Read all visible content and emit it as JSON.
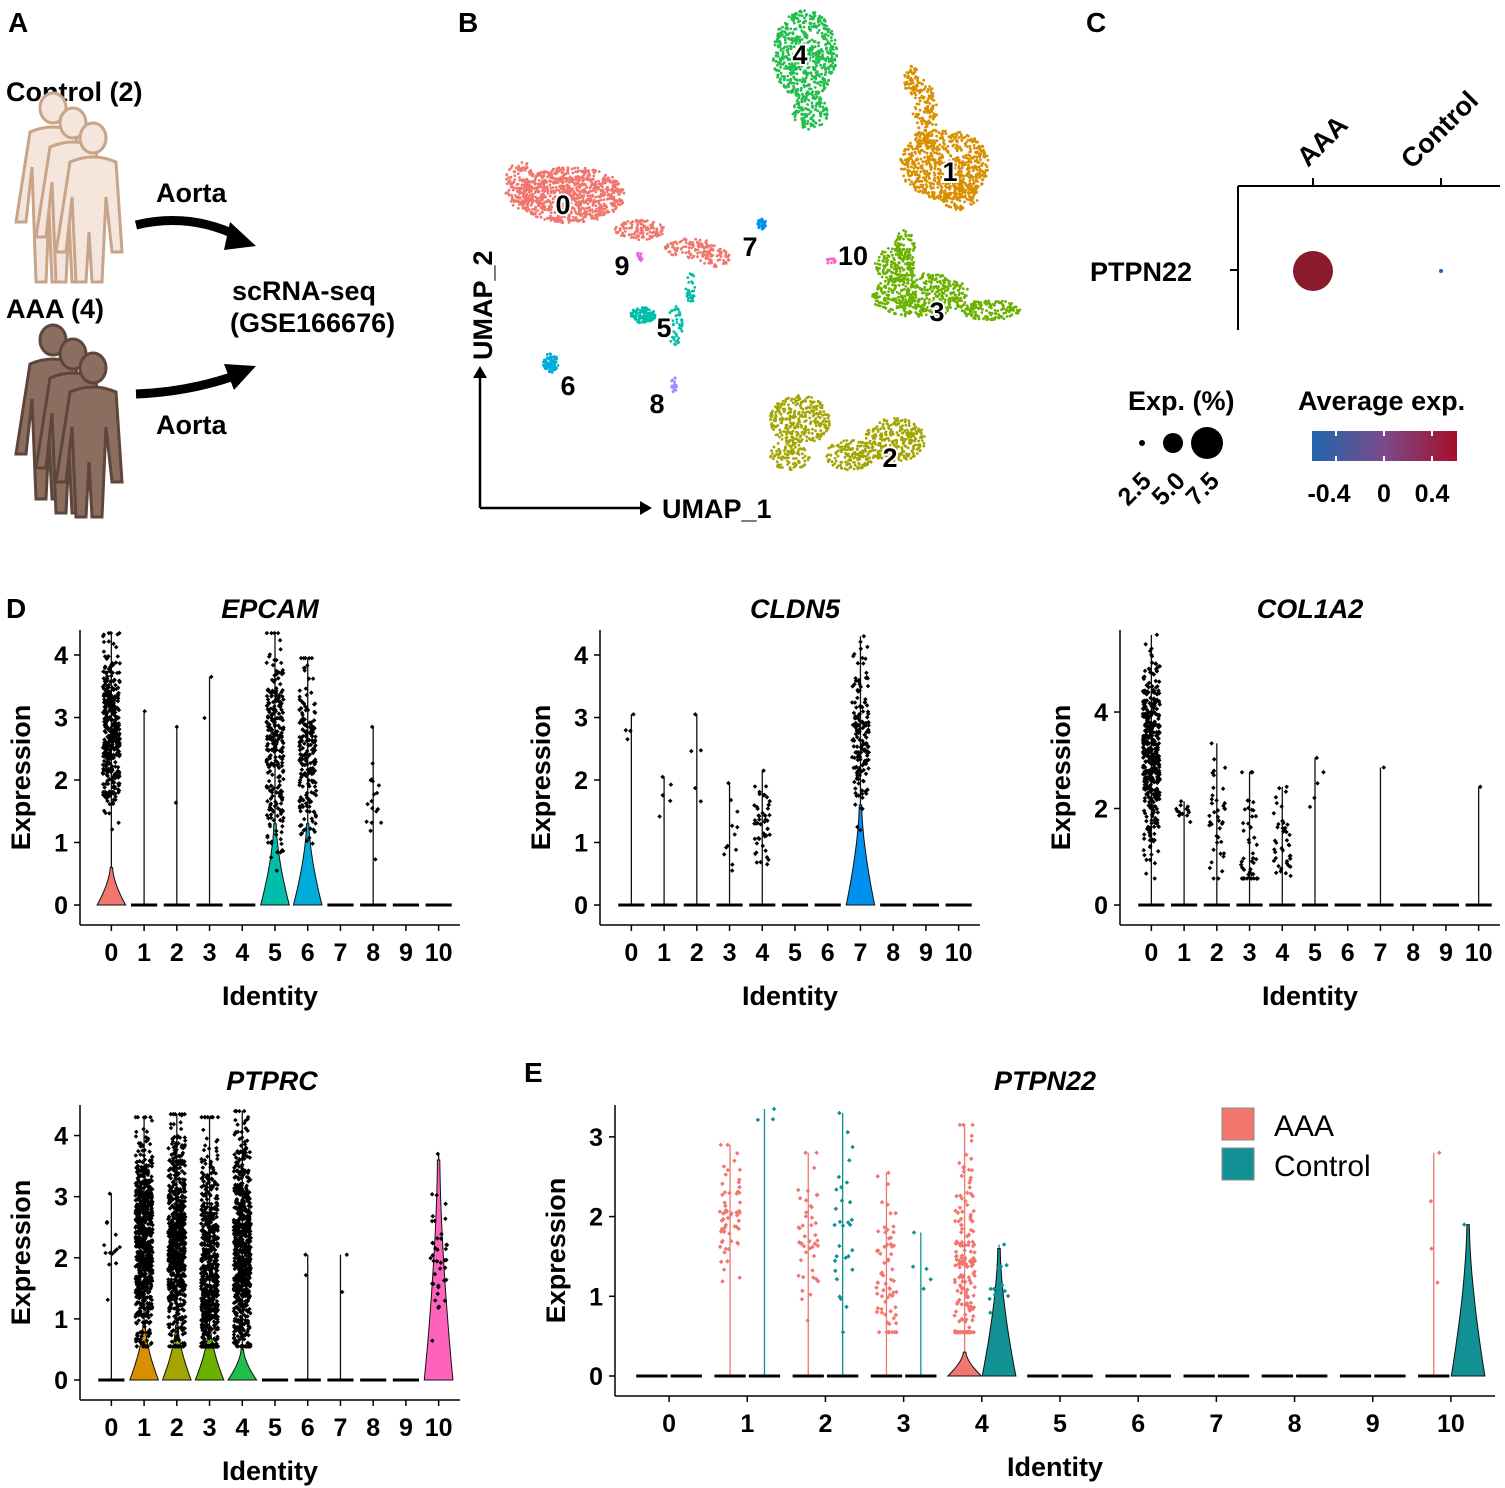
{
  "panels": {
    "a": "A",
    "b": "B",
    "c": "C",
    "d": "D",
    "e": "E"
  },
  "panel_a": {
    "control_label": "Control (2)",
    "aaa_label": "AAA (4)",
    "arrow_label_top": "Aorta",
    "arrow_label_bottom": "Aorta",
    "assay_line1": "scRNA-seq",
    "assay_line2": "(GSE166676)"
  },
  "panel_b": {
    "xlabel": "UMAP_1",
    "ylabel": "UMAP_2",
    "clusters": [
      {
        "id": "0",
        "color": "#F0766E"
      },
      {
        "id": "1",
        "color": "#D89000"
      },
      {
        "id": "2",
        "color": "#A3A500"
      },
      {
        "id": "3",
        "color": "#6BB100"
      },
      {
        "id": "4",
        "color": "#22BE4C"
      },
      {
        "id": "5",
        "color": "#00BFAA"
      },
      {
        "id": "6",
        "color": "#00ACD9"
      },
      {
        "id": "7",
        "color": "#0090F0"
      },
      {
        "id": "8",
        "color": "#A58AFF"
      },
      {
        "id": "9",
        "color": "#EB62E6"
      },
      {
        "id": "10",
        "color": "#FF62BC"
      }
    ]
  },
  "panel_c": {
    "gene": "PTPN22",
    "groups": [
      "AAA",
      "Control"
    ],
    "dots": [
      {
        "group": "AAA",
        "pct_exp": 7.0,
        "avg_exp": 0.5,
        "color": "#8B1A2B"
      },
      {
        "group": "Control",
        "pct_exp": 0.2,
        "avg_exp": -0.5,
        "color": "#2166AC"
      }
    ],
    "size_legend_title": "Exp. (%)",
    "size_legend_values": [
      "2.5",
      "5.0",
      "7.5"
    ],
    "color_legend_title": "Average exp.",
    "color_legend_ticks": [
      "-0.4",
      "0",
      "0.4"
    ],
    "color_low": "#2166AC",
    "color_high": "#A50F2A"
  },
  "chart_data": [
    {
      "type": "violin",
      "title": "EPCAM",
      "xlabel": "Identity",
      "ylabel": "Expression",
      "categories": [
        "0",
        "1",
        "2",
        "3",
        "4",
        "5",
        "6",
        "7",
        "8",
        "9",
        "10"
      ],
      "yticks": [
        "0",
        "1",
        "2",
        "3",
        "4"
      ],
      "ylim": [
        0,
        4.4
      ],
      "max_values": [
        4.35,
        3.1,
        2.85,
        3.65,
        0,
        4.35,
        3.95,
        0,
        2.85,
        0,
        0
      ],
      "cells_above_zero": [
        400,
        1,
        2,
        2,
        0,
        260,
        200,
        0,
        18,
        0,
        0
      ],
      "median_expr": [
        2.8,
        3.1,
        2.0,
        3.3,
        0,
        2.5,
        2.4,
        0,
        1.7,
        0,
        0
      ],
      "violin_height": [
        0.6,
        0,
        0,
        0,
        0,
        1.3,
        1.3,
        0,
        0,
        0,
        0
      ]
    },
    {
      "type": "violin",
      "title": "CLDN5",
      "xlabel": "Identity",
      "ylabel": "Expression",
      "categories": [
        "0",
        "1",
        "2",
        "3",
        "4",
        "5",
        "6",
        "7",
        "8",
        "9",
        "10"
      ],
      "yticks": [
        "0",
        "1",
        "2",
        "3",
        "4"
      ],
      "ylim": [
        0,
        4.4
      ],
      "max_values": [
        3.05,
        2.05,
        3.05,
        1.95,
        2.15,
        0,
        0,
        4.3,
        0,
        0,
        0
      ],
      "cells_above_zero": [
        4,
        5,
        5,
        12,
        50,
        0,
        0,
        160,
        0,
        0,
        0
      ],
      "median_expr": [
        2.8,
        1.5,
        2.0,
        1.0,
        1.3,
        0,
        0,
        2.8,
        0,
        0,
        0
      ],
      "violin_height": [
        0,
        0,
        0,
        0,
        0,
        0,
        0,
        1.6,
        0,
        0,
        0
      ]
    },
    {
      "type": "violin",
      "title": "COL1A2",
      "xlabel": "Identity",
      "ylabel": "Expression",
      "categories": [
        "0",
        "1",
        "2",
        "3",
        "4",
        "5",
        "6",
        "7",
        "8",
        "9",
        "10"
      ],
      "yticks": [
        "0",
        "2",
        "4"
      ],
      "ylim": [
        0,
        5.7
      ],
      "max_values": [
        5.6,
        2.15,
        3.35,
        2.75,
        2.45,
        3.05,
        0,
        2.85,
        0,
        0,
        2.45
      ],
      "cells_above_zero": [
        420,
        15,
        40,
        50,
        45,
        5,
        0,
        1,
        0,
        0,
        1
      ],
      "median_expr": [
        3.2,
        1.9,
        1.5,
        1.1,
        1.3,
        2.4,
        0,
        2.8,
        0,
        0,
        2.4
      ],
      "violin_height": [
        0,
        0,
        0,
        0,
        0,
        0,
        0,
        0,
        0,
        0,
        0
      ]
    },
    {
      "type": "violin",
      "title": "PTPRC",
      "xlabel": "Identity",
      "ylabel": "Expression",
      "categories": [
        "0",
        "1",
        "2",
        "3",
        "4",
        "5",
        "6",
        "7",
        "8",
        "9",
        "10"
      ],
      "yticks": [
        "0",
        "1",
        "2",
        "3",
        "4"
      ],
      "ylim": [
        0,
        4.5
      ],
      "max_values": [
        3.05,
        4.3,
        4.35,
        4.3,
        4.4,
        0,
        2.05,
        2.05,
        0,
        0,
        3.7
      ],
      "cells_above_zero": [
        14,
        1400,
        1500,
        1400,
        1400,
        0,
        2,
        2,
        0,
        0,
        40
      ],
      "median_expr": [
        2.3,
        2.3,
        2.3,
        1.6,
        2.2,
        0,
        1.8,
        1.5,
        0,
        0,
        2.0
      ],
      "violin_height": [
        0,
        0.9,
        0.9,
        0.85,
        0.5,
        0,
        0,
        0,
        0,
        0,
        3.6
      ]
    },
    {
      "type": "split-violin",
      "title": "PTPN22",
      "xlabel": "Identity",
      "ylabel": "Expression",
      "categories": [
        "0",
        "1",
        "2",
        "3",
        "4",
        "5",
        "6",
        "7",
        "8",
        "9",
        "10"
      ],
      "yticks": [
        "0",
        "1",
        "2",
        "3"
      ],
      "ylim": [
        0,
        3.4
      ],
      "legend": [
        {
          "name": "AAA",
          "color": "#F0766E"
        },
        {
          "name": "Control",
          "color": "#119194"
        }
      ],
      "series": [
        {
          "name": "AAA",
          "color": "#F0766E",
          "max_values": [
            0,
            2.9,
            2.8,
            2.55,
            3.15,
            0,
            0,
            0,
            0,
            0,
            2.8
          ],
          "cells_above_zero": [
            0,
            60,
            45,
            70,
            180,
            0,
            0,
            0,
            0,
            0,
            4
          ],
          "median_expr": [
            0,
            2.0,
            1.7,
            1.2,
            1.4,
            0,
            0,
            0,
            0,
            0,
            1.8
          ],
          "violin_height": [
            0,
            0,
            0,
            0,
            0.3,
            0,
            0,
            0,
            0,
            0,
            0
          ]
        },
        {
          "name": "Control",
          "color": "#119194",
          "max_values": [
            0,
            3.35,
            3.3,
            1.8,
            1.65,
            0,
            0,
            0,
            0,
            0,
            1.9
          ],
          "cells_above_zero": [
            0,
            3,
            30,
            5,
            22,
            0,
            0,
            0,
            0,
            0,
            2
          ],
          "median_expr": [
            0,
            3.1,
            1.6,
            1.2,
            1.0,
            0,
            0,
            0,
            0,
            0,
            1.0
          ],
          "violin_height": [
            0,
            0,
            0,
            0,
            1.6,
            0,
            0,
            0,
            0,
            0,
            1.9
          ]
        }
      ]
    }
  ]
}
